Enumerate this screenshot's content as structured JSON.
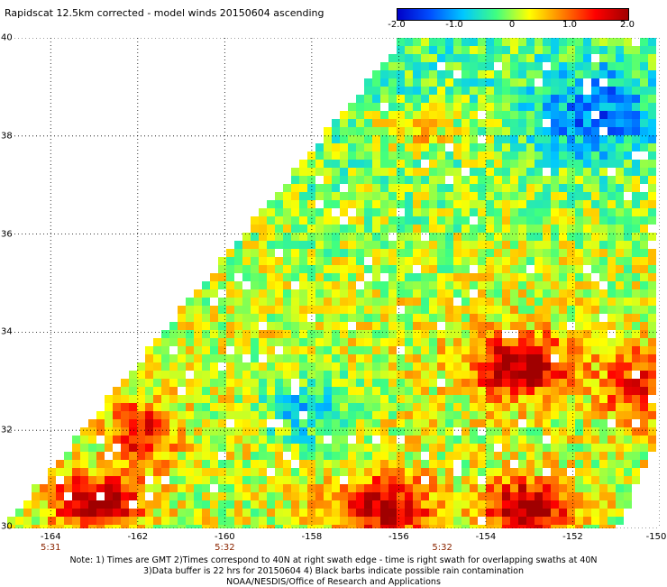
{
  "title": "Rapidscat 12.5km corrected - model winds 20150604 ascending",
  "colorbar": {
    "ticks": [
      "-2.0",
      "-1.0",
      "0",
      "1.0",
      "2.0"
    ],
    "tick_values": [
      -2.0,
      -1.0,
      0,
      1.0,
      2.0
    ],
    "range": [
      -2.0,
      2.0
    ],
    "colors": [
      "#0000c8",
      "#0050ff",
      "#00c8ff",
      "#40ff80",
      "#ffff00",
      "#ff8000",
      "#ff0000",
      "#a00000"
    ]
  },
  "map": {
    "lat_range": [
      30,
      40
    ],
    "lon_range": [
      -165,
      -150
    ],
    "lat_labels": [
      "30",
      "32",
      "34",
      "36",
      "38",
      "40"
    ],
    "lat_values": [
      30,
      32,
      34,
      36,
      38,
      40
    ],
    "lon_labels": [
      "-164",
      "-162",
      "-160",
      "-158",
      "-156",
      "-154",
      "-152",
      "-150"
    ],
    "lon_values": [
      -164,
      -162,
      -160,
      -158,
      -156,
      -154,
      -152,
      -150
    ],
    "gridlines": true,
    "pass_times": [
      {
        "label": "5:31",
        "lon": -164
      },
      {
        "label": "5:32",
        "lon": -160
      },
      {
        "label": "5:32",
        "lon": -155
      }
    ]
  },
  "notes": [
    "Note: 1) Times are GMT 2)Times correspond to 40N at right swath edge - time is right swath for overlapping swaths at 40N",
    "3)Data buffer is 22 hrs for 20150604 4) Black barbs indicate possible rain contamination",
    "NOAA/NESDIS/Office of Research and Applications"
  ]
}
